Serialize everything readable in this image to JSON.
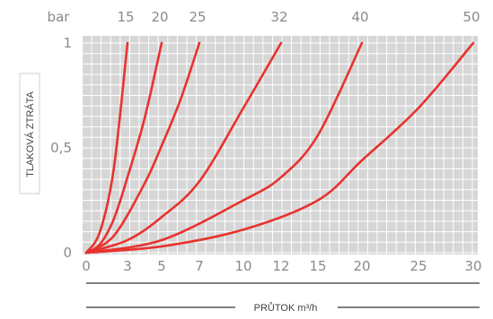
{
  "chart_data": {
    "type": "line",
    "ylabel": "TLAKOVÁ ZTRÁTA",
    "xlabel": "PRŮTOK m³/h",
    "y_unit": "bar",
    "x_tick_labels": [
      "0",
      "3",
      "5",
      "7",
      "10",
      "12",
      "15",
      "20",
      "25",
      "30"
    ],
    "y_tick_labels": [
      "0",
      "0,5",
      "1"
    ],
    "ylim": [
      0,
      1
    ],
    "grid": true,
    "colors": {
      "curve": "#e8322e",
      "plot_background": "#d6d6d6",
      "grid": "#ffffff"
    },
    "series": [
      {
        "name": "15",
        "points": [
          [
            0,
            0
          ],
          [
            1,
            0.1
          ],
          [
            2,
            0.4
          ],
          [
            3,
            1.0
          ]
        ]
      },
      {
        "name": "20",
        "points": [
          [
            0,
            0
          ],
          [
            1,
            0.04
          ],
          [
            2,
            0.16
          ],
          [
            3,
            0.36
          ],
          [
            4,
            0.64
          ],
          [
            5,
            1.0
          ]
        ]
      },
      {
        "name": "25",
        "points": [
          [
            0,
            0
          ],
          [
            2,
            0.08
          ],
          [
            4,
            0.33
          ],
          [
            5,
            0.51
          ],
          [
            6,
            0.73
          ],
          [
            7,
            1.0
          ]
        ]
      },
      {
        "name": "32",
        "points": [
          [
            0,
            0
          ],
          [
            3,
            0.06
          ],
          [
            5,
            0.17
          ],
          [
            7,
            0.34
          ],
          [
            10,
            0.69
          ],
          [
            12,
            1.0
          ]
        ]
      },
      {
        "name": "40",
        "points": [
          [
            0,
            0
          ],
          [
            5,
            0.06
          ],
          [
            10,
            0.25
          ],
          [
            12,
            0.36
          ],
          [
            15,
            0.56
          ],
          [
            20,
            1.0
          ]
        ]
      },
      {
        "name": "50",
        "points": [
          [
            0,
            0
          ],
          [
            5,
            0.03
          ],
          [
            10,
            0.11
          ],
          [
            15,
            0.25
          ],
          [
            20,
            0.44
          ],
          [
            25,
            0.69
          ],
          [
            30,
            1.0
          ]
        ]
      }
    ]
  }
}
